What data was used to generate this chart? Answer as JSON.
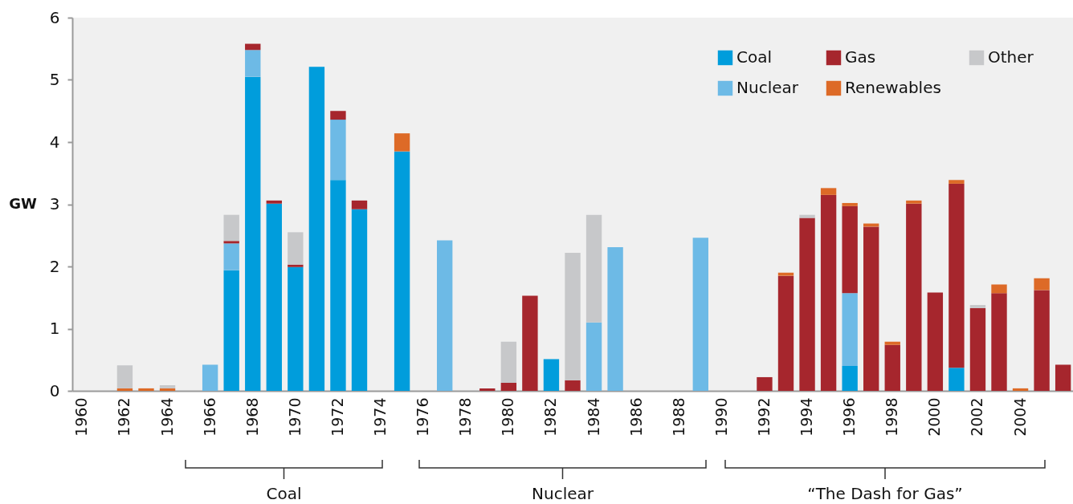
{
  "chart_data": {
    "type": "bar",
    "stacked": true,
    "ylabel": "GW",
    "ylim": [
      0,
      6
    ],
    "yticks": [
      0,
      1,
      2,
      3,
      4,
      5,
      6
    ],
    "legend": "top right",
    "categories": [
      "1960",
      null,
      "1962",
      null,
      "1964",
      null,
      "1966",
      null,
      "1968",
      null,
      "1970",
      null,
      "1972",
      null,
      "1974",
      null,
      "1976",
      null,
      "1978",
      null,
      "1980",
      null,
      "1982",
      null,
      "1984",
      null,
      "1986",
      null,
      "1988",
      null,
      "1990",
      null,
      "1992",
      null,
      "1994",
      null,
      "1996",
      null,
      "1998",
      null,
      "2000",
      null,
      "2002",
      null,
      "2004",
      null,
      null
    ],
    "series": [
      {
        "name": "Coal",
        "color": "#009ddc",
        "values": [
          null,
          null,
          null,
          null,
          null,
          null,
          null,
          1.94,
          5.05,
          3.01,
          1.99,
          5.21,
          3.39,
          2.92,
          null,
          3.85,
          null,
          null,
          null,
          null,
          null,
          null,
          0.51,
          null,
          null,
          null,
          null,
          null,
          null,
          null,
          null,
          null,
          null,
          null,
          null,
          null,
          0.4,
          null,
          null,
          null,
          null,
          0.37,
          null,
          null,
          null,
          null,
          null
        ]
      },
      {
        "name": "Nuclear",
        "color": "#6dbae6",
        "values": [
          null,
          null,
          null,
          null,
          null,
          null,
          0.42,
          0.43,
          0.43,
          null,
          null,
          null,
          0.97,
          null,
          null,
          null,
          null,
          2.42,
          null,
          null,
          null,
          null,
          null,
          null,
          1.1,
          2.31,
          null,
          null,
          null,
          2.46,
          null,
          null,
          null,
          null,
          null,
          null,
          1.17,
          null,
          null,
          null,
          null,
          null,
          null,
          null,
          null,
          null,
          null
        ]
      },
      {
        "name": "Gas",
        "color": "#a6262d",
        "values": [
          null,
          null,
          null,
          null,
          null,
          null,
          null,
          0.04,
          0.1,
          0.05,
          0.04,
          null,
          0.14,
          0.14,
          null,
          null,
          null,
          null,
          null,
          0.04,
          0.13,
          1.53,
          null,
          0.17,
          null,
          null,
          null,
          null,
          null,
          null,
          null,
          null,
          0.22,
          1.85,
          2.78,
          3.15,
          1.4,
          2.64,
          0.74,
          3.01,
          1.58,
          2.96,
          1.33,
          1.57,
          null,
          1.62,
          0.42
        ]
      },
      {
        "name": "Renewables",
        "color": "#dd6a27",
        "values": [
          null,
          null,
          0.04,
          0.04,
          0.04,
          null,
          null,
          null,
          null,
          null,
          null,
          null,
          null,
          null,
          null,
          0.29,
          null,
          null,
          null,
          null,
          null,
          null,
          null,
          null,
          null,
          null,
          null,
          null,
          null,
          null,
          null,
          null,
          null,
          0.05,
          null,
          0.11,
          0.05,
          0.05,
          0.05,
          0.05,
          null,
          0.06,
          null,
          0.14,
          0.04,
          0.19,
          null
        ]
      },
      {
        "name": "Other",
        "color": "#c7c8ca",
        "values": [
          null,
          null,
          0.37,
          null,
          0.05,
          null,
          null,
          0.42,
          null,
          null,
          0.52,
          null,
          null,
          null,
          null,
          null,
          null,
          null,
          null,
          null,
          0.66,
          null,
          null,
          2.05,
          1.73,
          null,
          null,
          null,
          null,
          null,
          null,
          null,
          null,
          null,
          0.05,
          null,
          null,
          null,
          null,
          null,
          null,
          null,
          0.05,
          null,
          null,
          null,
          null
        ]
      }
    ],
    "annotations": [
      "Coal",
      "Nuclear",
      "“The Dash for Gas”"
    ]
  }
}
